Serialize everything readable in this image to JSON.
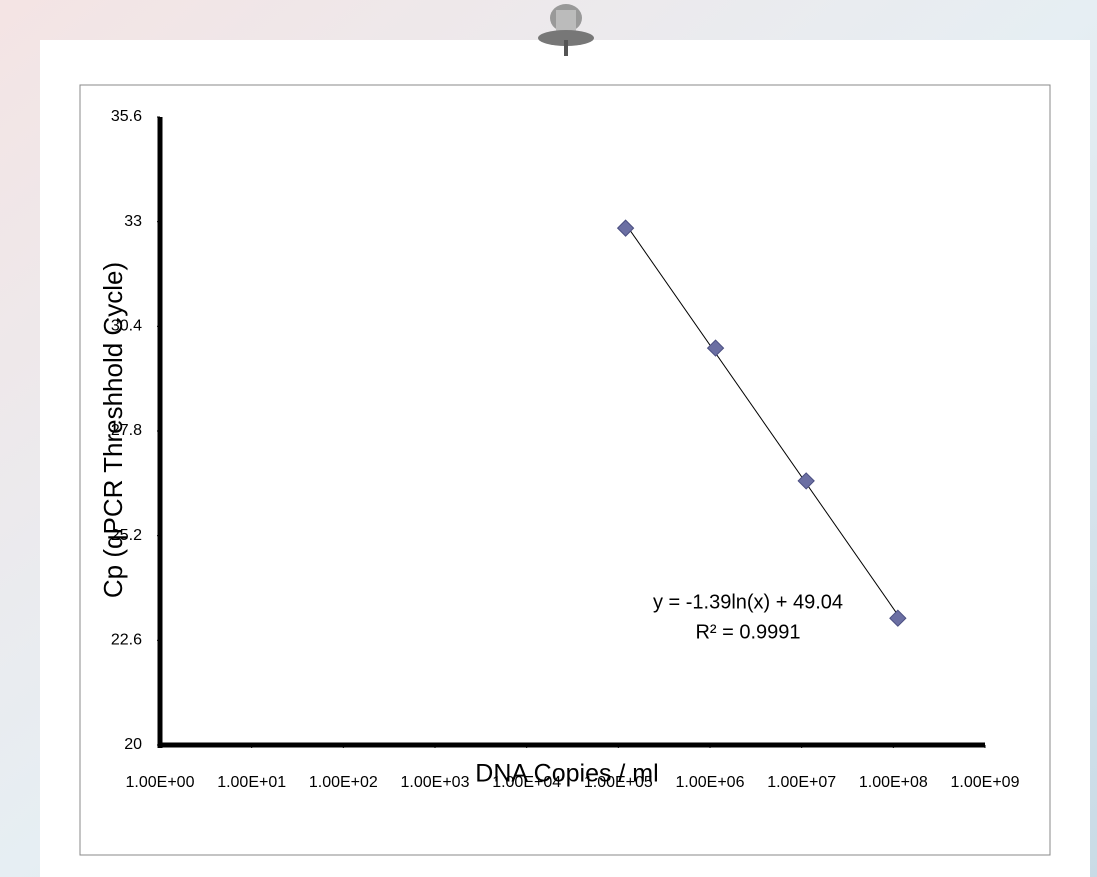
{
  "chart_data": {
    "type": "scatter",
    "x_label": "DNA Copies / ml",
    "y_label": "Cp (qPCR Threshhold Cycle)",
    "annotations": [
      "y = -1.39ln(x) + 49.04",
      "R² = 0.9991"
    ],
    "x_scale": "log",
    "x": [
      120000,
      1150000,
      11200000,
      112000000
    ],
    "series": [
      {
        "color": "#6b6fa3",
        "values": [
          32.84,
          29.86,
          26.56,
          23.15
        ]
      }
    ],
    "trendline": true,
    "xlim": [
      1,
      1000000000
    ],
    "xticks": [
      {
        "value": 1,
        "label": "1.00E+00"
      },
      {
        "value": 10,
        "label": "1.00E+01"
      },
      {
        "value": 100,
        "label": "1.00E+02"
      },
      {
        "value": 1000,
        "label": "1.00E+03"
      },
      {
        "value": 10000,
        "label": "1.00E+04"
      },
      {
        "value": 100000,
        "label": "1.00E+05"
      },
      {
        "value": 1000000,
        "label": "1.00E+06"
      },
      {
        "value": 10000000,
        "label": "1.00E+07"
      },
      {
        "value": 100000000,
        "label": "1.00E+08"
      },
      {
        "value": 1000000000,
        "label": "1.00E+09"
      }
    ],
    "ylim": [
      20,
      35.6
    ],
    "yticks": [
      20,
      22.6,
      25.2,
      27.8,
      30.4,
      33,
      35.6
    ]
  }
}
